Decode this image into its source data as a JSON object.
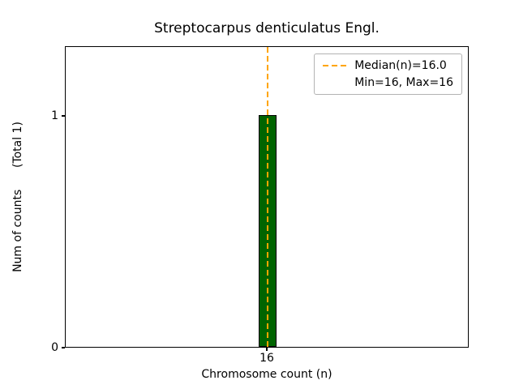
{
  "chart_data": {
    "type": "bar",
    "title": "Streptocarpus denticulatus Engl.",
    "xlabel": "Chromosome count (n)",
    "ylabel": "Num of counts      (Total 1)",
    "categories": [
      16
    ],
    "values": [
      1
    ],
    "xlim": [
      15.5,
      16.5
    ],
    "ylim": [
      0,
      1.3
    ],
    "bar_width": 0.044,
    "bar_color": "#006400",
    "bar_edge_color": "#000000",
    "median_line": {
      "x": 16,
      "color": "#FFA500",
      "style": "dashed"
    },
    "yticks": [
      0,
      1
    ],
    "ytick_labels": [
      "0",
      "1"
    ],
    "xticks": [
      16
    ],
    "xtick_labels": [
      "16"
    ],
    "grid": false,
    "legend": {
      "position": "upper right",
      "entries": [
        {
          "label": "Median(n)=16.0",
          "line_color": "#FFA500",
          "line_style": "dashed"
        },
        {
          "label": "Min=16, Max=16",
          "line_color": null,
          "line_style": null
        }
      ]
    }
  }
}
